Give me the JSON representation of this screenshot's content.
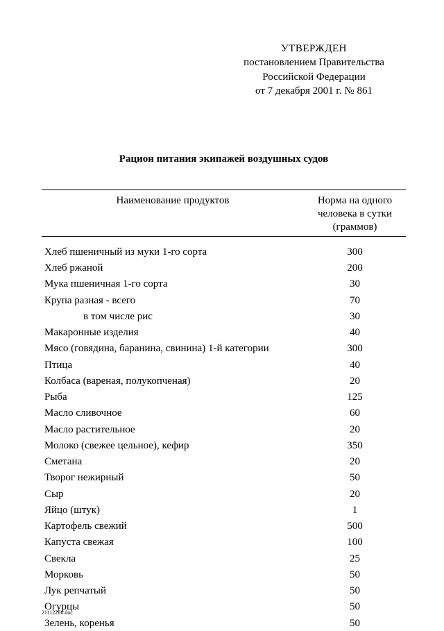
{
  "approval": {
    "line1": "УТВЕРЖДЕН",
    "line2": "постановлением Правительства",
    "line3": "Российской Федерации",
    "line4": "от 7 декабря 2001 г. № 861"
  },
  "title": "Рацион питания экипажей воздушных судов",
  "table": {
    "header_name": "Наименование продуктов",
    "header_norm_l1": "Норма на одного",
    "header_norm_l2": "человека в сутки",
    "header_norm_l3": "(граммов)",
    "rows": [
      {
        "name": "Хлеб пшеничный из муки 1-го сорта",
        "norm": "300",
        "indent": false
      },
      {
        "name": "Хлеб ржаной",
        "norm": "200",
        "indent": false
      },
      {
        "name": "Мука пшеничная 1-го сорта",
        "norm": "30",
        "indent": false
      },
      {
        "name": "Крупа разная - всего",
        "norm": "70",
        "indent": false
      },
      {
        "name": "в том числе рис",
        "norm": "30",
        "indent": true
      },
      {
        "name": "Макаронные изделия",
        "norm": "40",
        "indent": false
      },
      {
        "name": "Мясо (говядина, баранина, свинина) 1-й категории",
        "norm": "300",
        "indent": false
      },
      {
        "name": "Птица",
        "norm": "40",
        "indent": false
      },
      {
        "name": "Колбаса (вареная, полукопченая)",
        "norm": "20",
        "indent": false
      },
      {
        "name": "Рыба",
        "norm": "125",
        "indent": false
      },
      {
        "name": "Масло сливочное",
        "norm": "60",
        "indent": false
      },
      {
        "name": "Масло растительное",
        "norm": "20",
        "indent": false
      },
      {
        "name": "Молоко (свежее цельное), кефир",
        "norm": "350",
        "indent": false
      },
      {
        "name": "Сметана",
        "norm": "20",
        "indent": false
      },
      {
        "name": "Творог нежирный",
        "norm": "50",
        "indent": false
      },
      {
        "name": "Сыр",
        "norm": "20",
        "indent": false
      },
      {
        "name": "Яйцо (штук)",
        "norm": "1",
        "indent": false
      },
      {
        "name": "Картофель свежий",
        "norm": "500",
        "indent": false
      },
      {
        "name": "Капуста свежая",
        "norm": "100",
        "indent": false
      },
      {
        "name": "Свекла",
        "norm": "25",
        "indent": false
      },
      {
        "name": "Морковь",
        "norm": "50",
        "indent": false
      },
      {
        "name": "Лук репчатый",
        "norm": "50",
        "indent": false
      },
      {
        "name": "Огурцы",
        "norm": "50",
        "indent": false
      },
      {
        "name": "Зелень, коренья",
        "norm": "50",
        "indent": false
      }
    ]
  },
  "footer": "21112286.doc"
}
